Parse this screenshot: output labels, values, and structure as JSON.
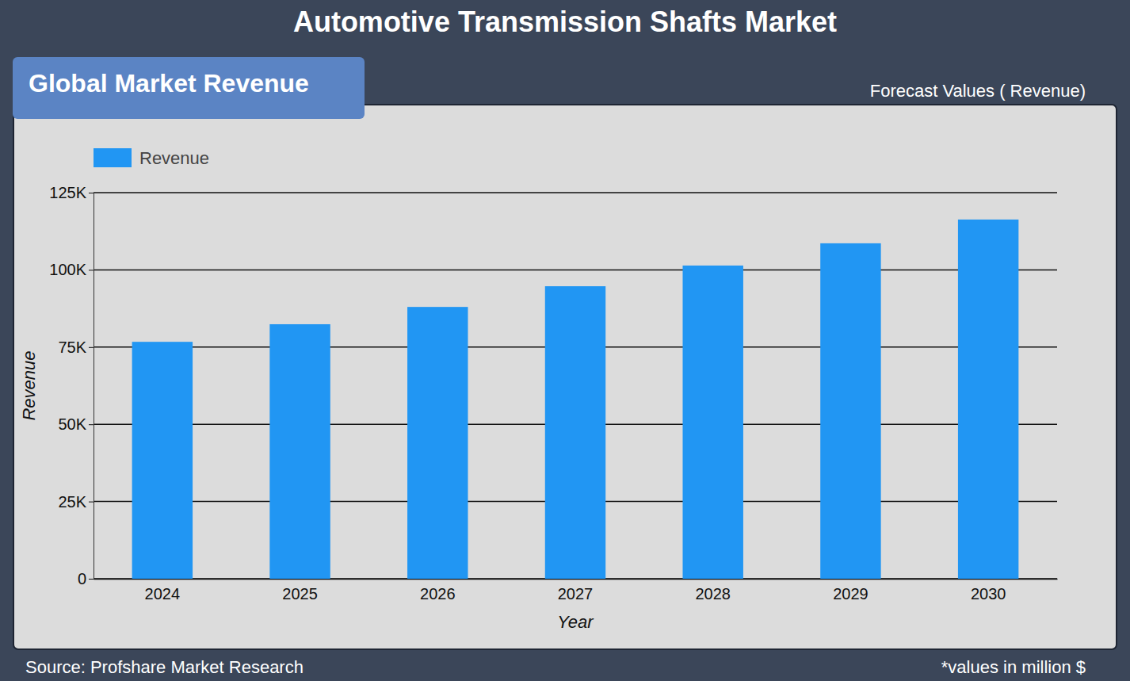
{
  "chart_data": {
    "type": "bar",
    "title": "Automotive Transmission Shafts Market",
    "header": "Global Market Revenue",
    "subtitle": "Forecast Values ( Revenue)",
    "x_label": "Year",
    "y_label": "Revenue",
    "source": "Source: Profshare Market Research",
    "note": "*values in million $",
    "categories": [
      "2024",
      "2025",
      "2026",
      "2027",
      "2028",
      "2029",
      "2030"
    ],
    "series": [
      {
        "name": "Revenue",
        "color": "#2196f3",
        "values": [
          76700,
          82400,
          88000,
          94700,
          101400,
          108600,
          116300
        ]
      }
    ],
    "ylim": [
      0,
      125000
    ],
    "yticks": [
      0,
      {
        "value": 25000,
        "label": "25K"
      },
      {
        "value": 50000,
        "label": "50K"
      },
      {
        "value": 75000,
        "label": "75K"
      },
      {
        "value": 100000,
        "label": "100K"
      },
      {
        "value": 125000,
        "label": "125K"
      }
    ],
    "grid": true,
    "legend": "top-left"
  }
}
